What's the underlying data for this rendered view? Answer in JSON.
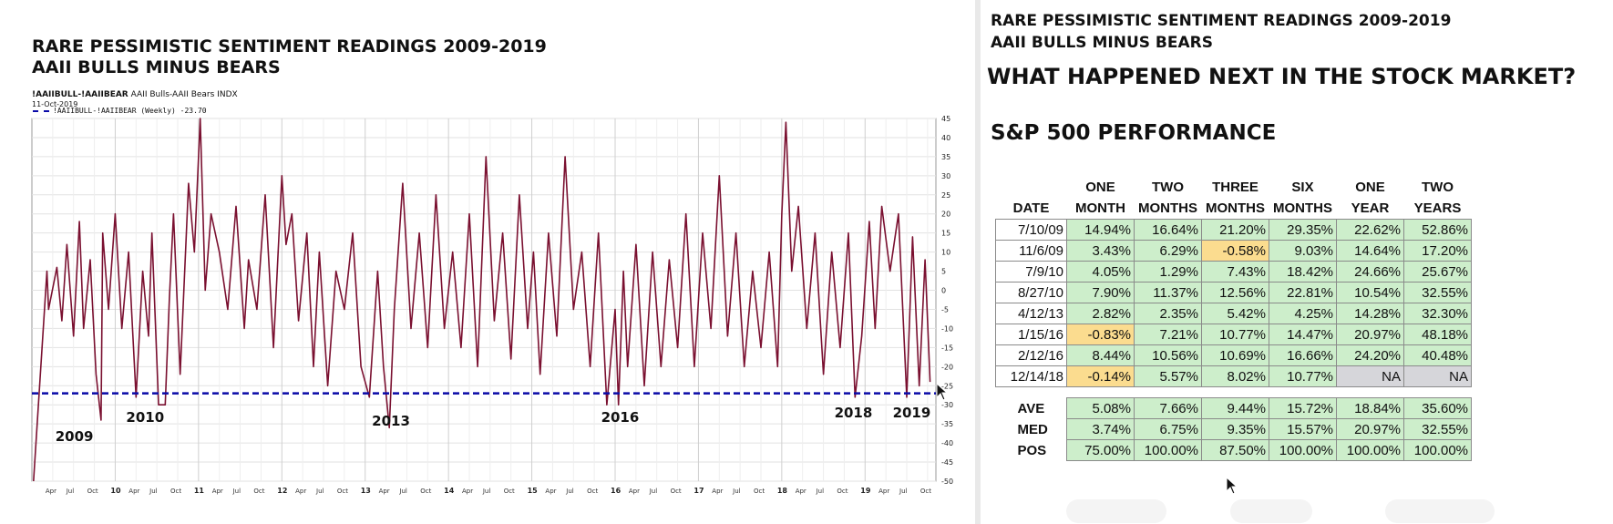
{
  "left": {
    "title_line1": "RARE PESSIMISTIC SENTIMENT READINGS 2009-2019",
    "title_line2": "AAII BULLS MINUS BEARS",
    "symbol": "!AAIIBULL-!AAIIBEAR",
    "symbol_desc": "AAII Bulls-AAII Bears INDX",
    "chart_date": "11-Oct-2019",
    "legend": "!AAIIBULL-!AAIIBEAR (Weekly) -23.70"
  },
  "right": {
    "title_line1": "RARE PESSIMISTIC SENTIMENT READINGS 2009-2019",
    "title_line2": "AAII BULLS MINUS BEARS",
    "question": "WHAT HAPPENED NEXT IN THE STOCK MARKET?",
    "subtitle": "S&P 500 PERFORMANCE",
    "table": {
      "header_top": [
        "",
        "ONE",
        "TWO",
        "THREE",
        "SIX",
        "ONE",
        "TWO"
      ],
      "header_bottom": [
        "DATE",
        "MONTH",
        "MONTHS",
        "MONTHS",
        "MONTHS",
        "YEAR",
        "YEARS"
      ],
      "rows": [
        {
          "date": "7/10/09",
          "values": [
            "14.94%",
            "16.64%",
            "21.20%",
            "29.35%",
            "22.62%",
            "52.86%"
          ]
        },
        {
          "date": "11/6/09",
          "values": [
            "3.43%",
            "6.29%",
            "-0.58%",
            "9.03%",
            "14.64%",
            "17.20%"
          ]
        },
        {
          "date": "7/9/10",
          "values": [
            "4.05%",
            "1.29%",
            "7.43%",
            "18.42%",
            "24.66%",
            "25.67%"
          ]
        },
        {
          "date": "8/27/10",
          "values": [
            "7.90%",
            "11.37%",
            "12.56%",
            "22.81%",
            "10.54%",
            "32.55%"
          ]
        },
        {
          "date": "4/12/13",
          "values": [
            "2.82%",
            "2.35%",
            "5.42%",
            "4.25%",
            "14.28%",
            "32.30%"
          ]
        },
        {
          "date": "1/15/16",
          "values": [
            "-0.83%",
            "7.21%",
            "10.77%",
            "14.47%",
            "20.97%",
            "48.18%"
          ]
        },
        {
          "date": "2/12/16",
          "values": [
            "8.44%",
            "10.56%",
            "10.69%",
            "16.66%",
            "24.20%",
            "40.48%"
          ]
        },
        {
          "date": "12/14/18",
          "values": [
            "-0.14%",
            "5.57%",
            "8.02%",
            "10.77%",
            "NA",
            "NA"
          ]
        }
      ],
      "summary": [
        {
          "label": "AVE",
          "values": [
            "5.08%",
            "7.66%",
            "9.44%",
            "15.72%",
            "18.84%",
            "35.60%"
          ]
        },
        {
          "label": "MED",
          "values": [
            "3.74%",
            "6.75%",
            "9.35%",
            "15.57%",
            "20.97%",
            "32.55%"
          ]
        },
        {
          "label": "POS",
          "values": [
            "75.00%",
            "100.00%",
            "87.50%",
            "100.00%",
            "100.00%",
            "100.00%"
          ]
        }
      ]
    }
  },
  "colors": {
    "series": "#7a1030",
    "threshold": "#0a0aa8",
    "positive_cell": "#cdeecb",
    "negative_cell": "#fbdc8f",
    "na_cell": "#d6d6da"
  },
  "chart_data": {
    "type": "line",
    "title": "RARE PESSIMISTIC SENTIMENT READINGS 2009-2019",
    "subtitle": "AAII BULLS MINUS BEARS",
    "series": [
      {
        "name": "!AAIIBULL-!AAIIBEAR (Weekly)",
        "last_value": -23.7,
        "x": [
          2009.02,
          2009.18,
          2009.2,
          2009.3,
          2009.36,
          2009.42,
          2009.5,
          2009.57,
          2009.62,
          2009.7,
          2009.77,
          2009.83,
          2009.85,
          2009.92,
          2010.0,
          2010.08,
          2010.16,
          2010.25,
          2010.33,
          2010.4,
          2010.44,
          2010.52,
          2010.6,
          2010.65,
          2010.7,
          2010.78,
          2010.88,
          2010.95,
          2011.02,
          2011.08,
          2011.15,
          2011.25,
          2011.35,
          2011.45,
          2011.55,
          2011.6,
          2011.7,
          2011.8,
          2011.9,
          2012.0,
          2012.05,
          2012.12,
          2012.2,
          2012.3,
          2012.38,
          2012.45,
          2012.55,
          2012.65,
          2012.75,
          2012.85,
          2012.95,
          2013.05,
          2013.15,
          2013.22,
          2013.29,
          2013.35,
          2013.45,
          2013.55,
          2013.65,
          2013.75,
          2013.85,
          2013.95,
          2014.05,
          2014.15,
          2014.25,
          2014.35,
          2014.45,
          2014.55,
          2014.65,
          2014.75,
          2014.85,
          2014.95,
          2015.02,
          2015.1,
          2015.2,
          2015.3,
          2015.4,
          2015.5,
          2015.6,
          2015.7,
          2015.8,
          2015.9,
          2016.0,
          2016.04,
          2016.1,
          2016.15,
          2016.25,
          2016.35,
          2016.45,
          2016.55,
          2016.65,
          2016.75,
          2016.85,
          2016.95,
          2017.05,
          2017.15,
          2017.25,
          2017.35,
          2017.45,
          2017.55,
          2017.65,
          2017.75,
          2017.85,
          2017.95,
          2018.0,
          2018.05,
          2018.12,
          2018.2,
          2018.3,
          2018.4,
          2018.5,
          2018.6,
          2018.7,
          2018.8,
          2018.88,
          2018.96,
          2019.05,
          2019.12,
          2019.2,
          2019.3,
          2019.4,
          2019.5,
          2019.57,
          2019.65,
          2019.72,
          2019.78
        ],
        "y": [
          -50,
          5,
          -5,
          6,
          -8,
          12,
          -12,
          18,
          -10,
          8,
          -22,
          -34,
          15,
          -5,
          20,
          -10,
          10,
          -28,
          5,
          -12,
          15,
          -30,
          -30,
          -2,
          20,
          -22,
          28,
          10,
          45,
          0,
          20,
          10,
          -5,
          22,
          -10,
          8,
          -5,
          25,
          -15,
          30,
          12,
          20,
          -8,
          15,
          -20,
          10,
          -25,
          5,
          -5,
          15,
          -20,
          -28,
          5,
          -20,
          -36,
          -5,
          28,
          -10,
          15,
          -15,
          25,
          -10,
          10,
          -15,
          20,
          -20,
          35,
          -8,
          15,
          -18,
          25,
          -10,
          10,
          -22,
          15,
          -12,
          35,
          -5,
          10,
          -20,
          15,
          -30,
          -5,
          -30,
          5,
          -20,
          12,
          -25,
          10,
          -20,
          8,
          -15,
          20,
          -20,
          15,
          -10,
          30,
          -12,
          15,
          -20,
          5,
          -15,
          10,
          -20,
          20,
          44,
          5,
          22,
          -10,
          15,
          -22,
          10,
          -15,
          15,
          -28,
          -12,
          18,
          -10,
          22,
          5,
          20,
          -28,
          14,
          -25,
          8,
          -24
        ]
      }
    ],
    "threshold_line": -27,
    "xlabel": "",
    "ylabel": "",
    "ylim": [
      -50,
      45
    ],
    "yticks": [
      45,
      40,
      35,
      30,
      25,
      20,
      15,
      10,
      5,
      0,
      -5,
      -10,
      -15,
      -20,
      -25,
      -30,
      -35,
      -40,
      -45,
      -50
    ],
    "year_labels": [
      "10",
      "11",
      "12",
      "13",
      "14",
      "15",
      "16",
      "17",
      "18",
      "19"
    ],
    "month_labels": [
      "Apr",
      "Jul",
      "Oct"
    ],
    "annotations": [
      {
        "text": "2009",
        "x": 2009.5
      },
      {
        "text": "2010",
        "x": 2010.35
      },
      {
        "text": "2013",
        "x": 2013.3
      },
      {
        "text": "2016",
        "x": 2016.05
      },
      {
        "text": "2018",
        "x": 2018.85
      },
      {
        "text": "2019",
        "x": 2019.55
      }
    ],
    "grid": true
  }
}
